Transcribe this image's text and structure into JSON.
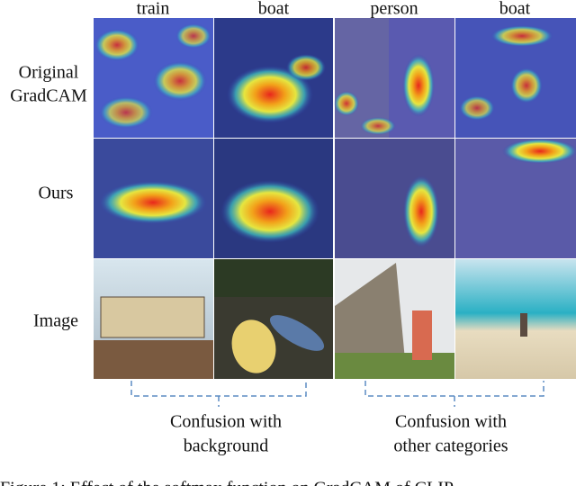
{
  "figure": {
    "columns": [
      "train",
      "boat",
      "person",
      "boat"
    ],
    "rows": [
      [
        "Original",
        "GradCAM"
      ],
      [
        "Ours"
      ],
      [
        "Image"
      ]
    ],
    "groups": [
      [
        "Confusion with",
        "background"
      ],
      [
        "Confusion with",
        "other categories"
      ]
    ],
    "caption": "Figure 1: Effect of the softmax function on GradCAM of CLIP"
  }
}
